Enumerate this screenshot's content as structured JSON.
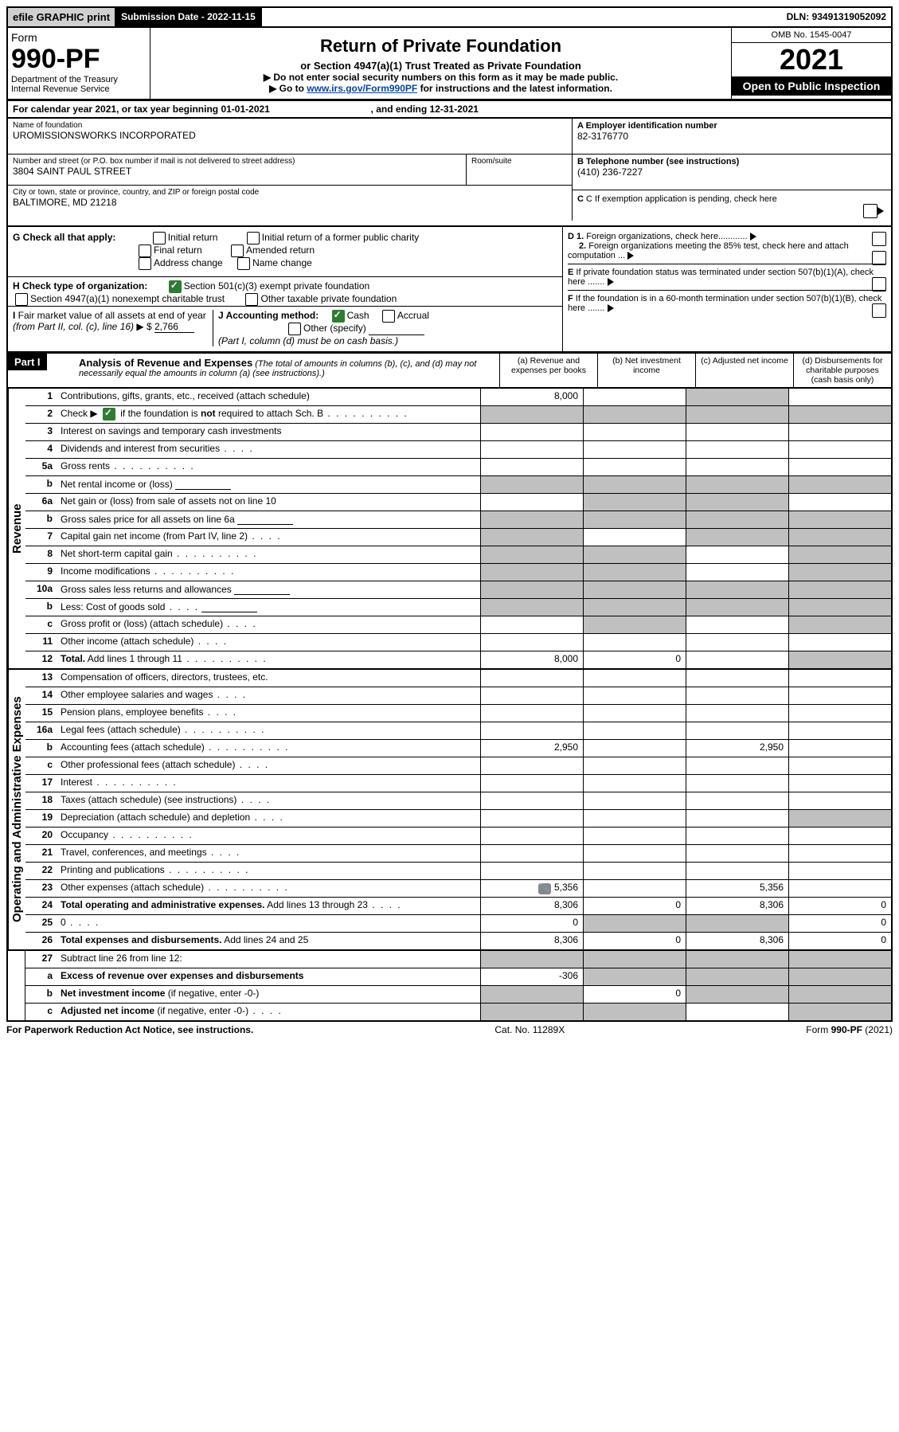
{
  "topbar": {
    "efile": "efile GRAPHIC print",
    "subdate_label": "Submission Date - ",
    "subdate": "2022-11-15",
    "dln_label": "DLN: ",
    "dln": "93491319052092"
  },
  "header": {
    "form_word": "Form",
    "form_no": "990-PF",
    "dept1": "Department of the Treasury",
    "dept2": "Internal Revenue Service",
    "title": "Return of Private Foundation",
    "subtitle": "or Section 4947(a)(1) Trust Treated as Private Foundation",
    "instr1": "▶ Do not enter social security numbers on this form as it may be made public.",
    "instr2_pre": "▶ Go to ",
    "instr2_url": "www.irs.gov/Form990PF",
    "instr2_post": " for instructions and the latest information.",
    "omb": "OMB No. 1545-0047",
    "year": "2021",
    "open": "Open to Public Inspection"
  },
  "calrow": {
    "text_a": "For calendar year 2021, or tax year beginning ",
    "begin": "01-01-2021",
    "text_b": " , and ending ",
    "end": "12-31-2021"
  },
  "name": {
    "lbl1": "Name of foundation",
    "val1": "UROMISSIONSWORKS INCORPORATED",
    "lbl2": "Number and street (or P.O. box number if mail is not delivered to street address)",
    "val2": "3804 SAINT PAUL STREET",
    "lbl2b": "Room/suite",
    "lbl3": "City or town, state or province, country, and ZIP or foreign postal code",
    "val3": "BALTIMORE, MD  21218",
    "a_lbl": "A Employer identification number",
    "a_val": "82-3176770",
    "b_lbl": "B Telephone number (see instructions)",
    "b_val": "(410) 236-7227",
    "c_lbl": "C  If exemption application is pending, check here"
  },
  "checks": {
    "g_lbl": "G Check all that apply:",
    "g1": "Initial return",
    "g2": "Initial return of a former public charity",
    "g3": "Final return",
    "g4": "Amended return",
    "g5": "Address change",
    "g6": "Name change",
    "h_lbl": "H Check type of organization:",
    "h1": "Section 501(c)(3) exempt private foundation",
    "h2": "Section 4947(a)(1) nonexempt charitable trust",
    "h3": "Other taxable private foundation",
    "i_lbl": "I Fair market value of all assets at end of year (from Part II, col. (c), line 16) ▶ $",
    "i_val": "2,766",
    "j_lbl": "J Accounting method:",
    "j1": "Cash",
    "j2": "Accrual",
    "j3": "Other (specify)",
    "j_note": "(Part I, column (d) must be on cash basis.)",
    "d1_lbl": "D 1. Foreign organizations, check here............",
    "d2_lbl": "2. Foreign organizations meeting the 85% test, check here and attach computation ...",
    "e_lbl": "E  If private foundation status was terminated under section 507(b)(1)(A), check here .......",
    "f_lbl": "F  If the foundation is in a 60-month termination under section 507(b)(1)(B), check here ......."
  },
  "part1": {
    "label": "Part I",
    "title": "Analysis of Revenue and Expenses",
    "note": " (The total of amounts in columns (b), (c), and (d) may not necessarily equal the amounts in column (a) (see instructions).)",
    "col_a": "(a) Revenue and expenses per books",
    "col_b": "(b) Net investment income",
    "col_c": "(c) Adjusted net income",
    "col_d": "(d) Disbursements for charitable purposes (cash basis only)"
  },
  "sections": {
    "revenue": "Revenue",
    "expenses": "Operating and Administrative Expenses"
  },
  "rows": [
    {
      "n": "1",
      "d": "Contributions, gifts, grants, etc., received (attach schedule)",
      "a": "8,000",
      "grey": [
        "c"
      ]
    },
    {
      "n": "2",
      "d_html": "Check ▶ [cb-checked] if the foundation is <b>not</b> required to attach Sch. B",
      "dots": true,
      "grey": [
        "a",
        "b",
        "c",
        "d"
      ]
    },
    {
      "n": "3",
      "d": "Interest on savings and temporary cash investments"
    },
    {
      "n": "4",
      "d": "Dividends and interest from securities",
      "dots": "short"
    },
    {
      "n": "5a",
      "d": "Gross rents",
      "dots": true
    },
    {
      "n": "b",
      "d": "Net rental income or (loss)",
      "inline": true,
      "grey": [
        "a",
        "b",
        "c",
        "d"
      ]
    },
    {
      "n": "6a",
      "d": "Net gain or (loss) from sale of assets not on line 10",
      "grey": [
        "b",
        "c"
      ]
    },
    {
      "n": "b",
      "d": "Gross sales price for all assets on line 6a",
      "inline": true,
      "grey": [
        "a",
        "b",
        "c",
        "d"
      ]
    },
    {
      "n": "7",
      "d": "Capital gain net income (from Part IV, line 2)",
      "dots": "short",
      "grey": [
        "a",
        "c",
        "d"
      ]
    },
    {
      "n": "8",
      "d": "Net short-term capital gain",
      "dots": true,
      "grey": [
        "a",
        "b",
        "d"
      ]
    },
    {
      "n": "9",
      "d": "Income modifications",
      "dots": true,
      "grey": [
        "a",
        "b",
        "d"
      ]
    },
    {
      "n": "10a",
      "d": "Gross sales less returns and allowances",
      "inline": true,
      "grey": [
        "a",
        "b",
        "c",
        "d"
      ]
    },
    {
      "n": "b",
      "d": "Less: Cost of goods sold",
      "dots": "short",
      "inline": true,
      "grey": [
        "a",
        "b",
        "c",
        "d"
      ]
    },
    {
      "n": "c",
      "d": "Gross profit or (loss) (attach schedule)",
      "dots": "short",
      "grey": [
        "b",
        "d"
      ]
    },
    {
      "n": "11",
      "d": "Other income (attach schedule)",
      "dots": "short"
    },
    {
      "n": "12",
      "d_html": "<b>Total.</b> Add lines 1 through 11",
      "dots": true,
      "a": "8,000",
      "b": "0",
      "grey": [
        "d"
      ]
    }
  ],
  "exp_rows": [
    {
      "n": "13",
      "d": "Compensation of officers, directors, trustees, etc."
    },
    {
      "n": "14",
      "d": "Other employee salaries and wages",
      "dots": "short"
    },
    {
      "n": "15",
      "d": "Pension plans, employee benefits",
      "dots": "short"
    },
    {
      "n": "16a",
      "d": "Legal fees (attach schedule)",
      "dots": true
    },
    {
      "n": "b",
      "d": "Accounting fees (attach schedule)",
      "dots": true,
      "a": "2,950",
      "c": "2,950"
    },
    {
      "n": "c",
      "d": "Other professional fees (attach schedule)",
      "dots": "short"
    },
    {
      "n": "17",
      "d": "Interest",
      "dots": true
    },
    {
      "n": "18",
      "d": "Taxes (attach schedule) (see instructions)",
      "dots": "short"
    },
    {
      "n": "19",
      "d": "Depreciation (attach schedule) and depletion",
      "dots": "short",
      "grey": [
        "d"
      ]
    },
    {
      "n": "20",
      "d": "Occupancy",
      "dots": true
    },
    {
      "n": "21",
      "d": "Travel, conferences, and meetings",
      "dots": "short"
    },
    {
      "n": "22",
      "d": "Printing and publications",
      "dots": true
    },
    {
      "n": "23",
      "d": "Other expenses (attach schedule)",
      "dots": true,
      "icon": true,
      "a": "5,356",
      "c": "5,356"
    },
    {
      "n": "24",
      "d_html": "<b>Total operating and administrative expenses.</b> Add lines 13 through 23",
      "dots": "short",
      "a": "8,306",
      "b": "0",
      "c": "8,306",
      "d": "0"
    },
    {
      "n": "25",
      "d": "0",
      "dots": "short",
      "a": "0",
      "grey": [
        "b",
        "c"
      ]
    },
    {
      "n": "26",
      "d_html": "<b>Total expenses and disbursements.</b> Add lines 24 and 25",
      "a": "8,306",
      "b": "0",
      "c": "8,306",
      "d": "0"
    }
  ],
  "sub_rows": [
    {
      "n": "27",
      "d": "Subtract line 26 from line 12:",
      "grey": [
        "a",
        "b",
        "c",
        "d"
      ]
    },
    {
      "n": "a",
      "d_html": "<b>Excess of revenue over expenses and disbursements</b>",
      "a": "-306",
      "grey": [
        "b",
        "c",
        "d"
      ]
    },
    {
      "n": "b",
      "d_html": "<b>Net investment income</b> (if negative, enter -0-)",
      "b": "0",
      "grey": [
        "a",
        "c",
        "d"
      ]
    },
    {
      "n": "c",
      "d_html": "<b>Adjusted net income</b> (if negative, enter -0-)",
      "dots": "short",
      "grey": [
        "a",
        "b",
        "d"
      ]
    }
  ],
  "footer": {
    "l": "For Paperwork Reduction Act Notice, see instructions.",
    "m": "Cat. No. 11289X",
    "r": "Form 990-PF (2021)"
  }
}
